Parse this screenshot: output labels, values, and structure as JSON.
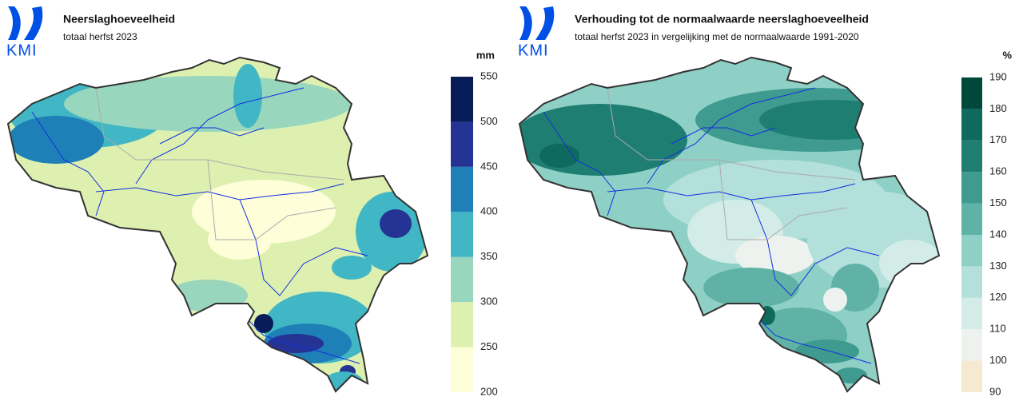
{
  "panels": [
    {
      "logo": "KMI",
      "title": "Neerslaghoeveelheid",
      "subtitle": "totaal herfst 2023",
      "legend": {
        "unit": "mm",
        "ticks": [
          200,
          250,
          300,
          350,
          400,
          450,
          500,
          550
        ],
        "colors": [
          "#fefed9",
          "#ddf0b0",
          "#98d6bd",
          "#41b6c4",
          "#1f80b8",
          "#253494",
          "#081d58"
        ]
      }
    },
    {
      "logo": "KMI",
      "title": "Verhouding tot de normaalwaarde neerslaghoeveelheid",
      "subtitle": "totaal herfst 2023 in vergelijking met de normaalwaarde 1991-2020",
      "legend": {
        "unit": "%",
        "ticks": [
          90,
          100,
          110,
          120,
          130,
          140,
          150,
          160,
          170,
          180,
          190
        ],
        "colors": [
          "#f5e9d0",
          "#eef2ef",
          "#d3ece8",
          "#b3e0da",
          "#8ed0c6",
          "#60b2a6",
          "#3f9a8f",
          "#1f7e72",
          "#0f6a5e",
          "#00473c"
        ]
      }
    }
  ]
}
